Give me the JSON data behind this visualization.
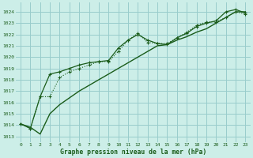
{
  "title": "Graphe pression niveau de la mer (hPa)",
  "bg_color": "#cceee8",
  "grid_color": "#99cccc",
  "line_color": "#1a5c1a",
  "xlim": [
    -0.5,
    23.5
  ],
  "ylim": [
    1012.5,
    1024.8
  ],
  "yticks": [
    1013,
    1014,
    1015,
    1016,
    1017,
    1018,
    1019,
    1020,
    1021,
    1022,
    1023,
    1024
  ],
  "xticks": [
    0,
    1,
    2,
    3,
    4,
    5,
    6,
    7,
    8,
    9,
    10,
    11,
    12,
    13,
    14,
    15,
    16,
    17,
    18,
    19,
    20,
    21,
    22,
    23
  ],
  "series1_x": [
    0,
    1,
    2,
    3,
    4,
    5,
    6,
    7,
    8,
    9,
    10,
    11,
    12,
    13,
    14,
    15,
    16,
    17,
    18,
    19,
    20,
    21,
    22,
    23
  ],
  "series1_y": [
    1014.1,
    1013.7,
    1016.5,
    1016.5,
    1018.2,
    1018.7,
    1019.0,
    1019.3,
    1019.6,
    1019.6,
    1020.5,
    1021.5,
    1022.1,
    1021.3,
    1021.2,
    1021.2,
    1021.7,
    1022.2,
    1022.8,
    1023.1,
    1023.1,
    1023.5,
    1024.0,
    1023.8
  ],
  "series2_x": [
    0,
    1,
    2,
    3,
    4,
    5,
    6,
    7,
    8,
    9,
    10,
    11,
    12,
    13,
    14,
    15,
    16,
    17,
    18,
    19,
    20,
    21,
    22,
    23
  ],
  "series2_y": [
    1014.1,
    1013.7,
    1016.5,
    1018.5,
    1018.7,
    1019.0,
    1019.3,
    1019.5,
    1019.6,
    1019.7,
    1020.8,
    1021.5,
    1022.0,
    1021.5,
    1021.2,
    1021.1,
    1021.7,
    1022.1,
    1022.7,
    1023.0,
    1023.2,
    1024.0,
    1024.2,
    1023.9
  ],
  "series3_x": [
    0,
    1,
    2,
    3,
    4,
    5,
    6,
    7,
    8,
    9,
    10,
    11,
    12,
    13,
    14,
    15,
    16,
    17,
    18,
    19,
    20,
    21,
    22,
    23
  ],
  "series3_y": [
    1014.1,
    1013.8,
    1013.2,
    1015.0,
    1015.8,
    1016.4,
    1017.0,
    1017.5,
    1018.0,
    1018.5,
    1019.0,
    1019.5,
    1020.0,
    1020.5,
    1021.0,
    1021.1,
    1021.5,
    1021.8,
    1022.2,
    1022.5,
    1023.0,
    1023.5,
    1024.0,
    1024.0
  ]
}
